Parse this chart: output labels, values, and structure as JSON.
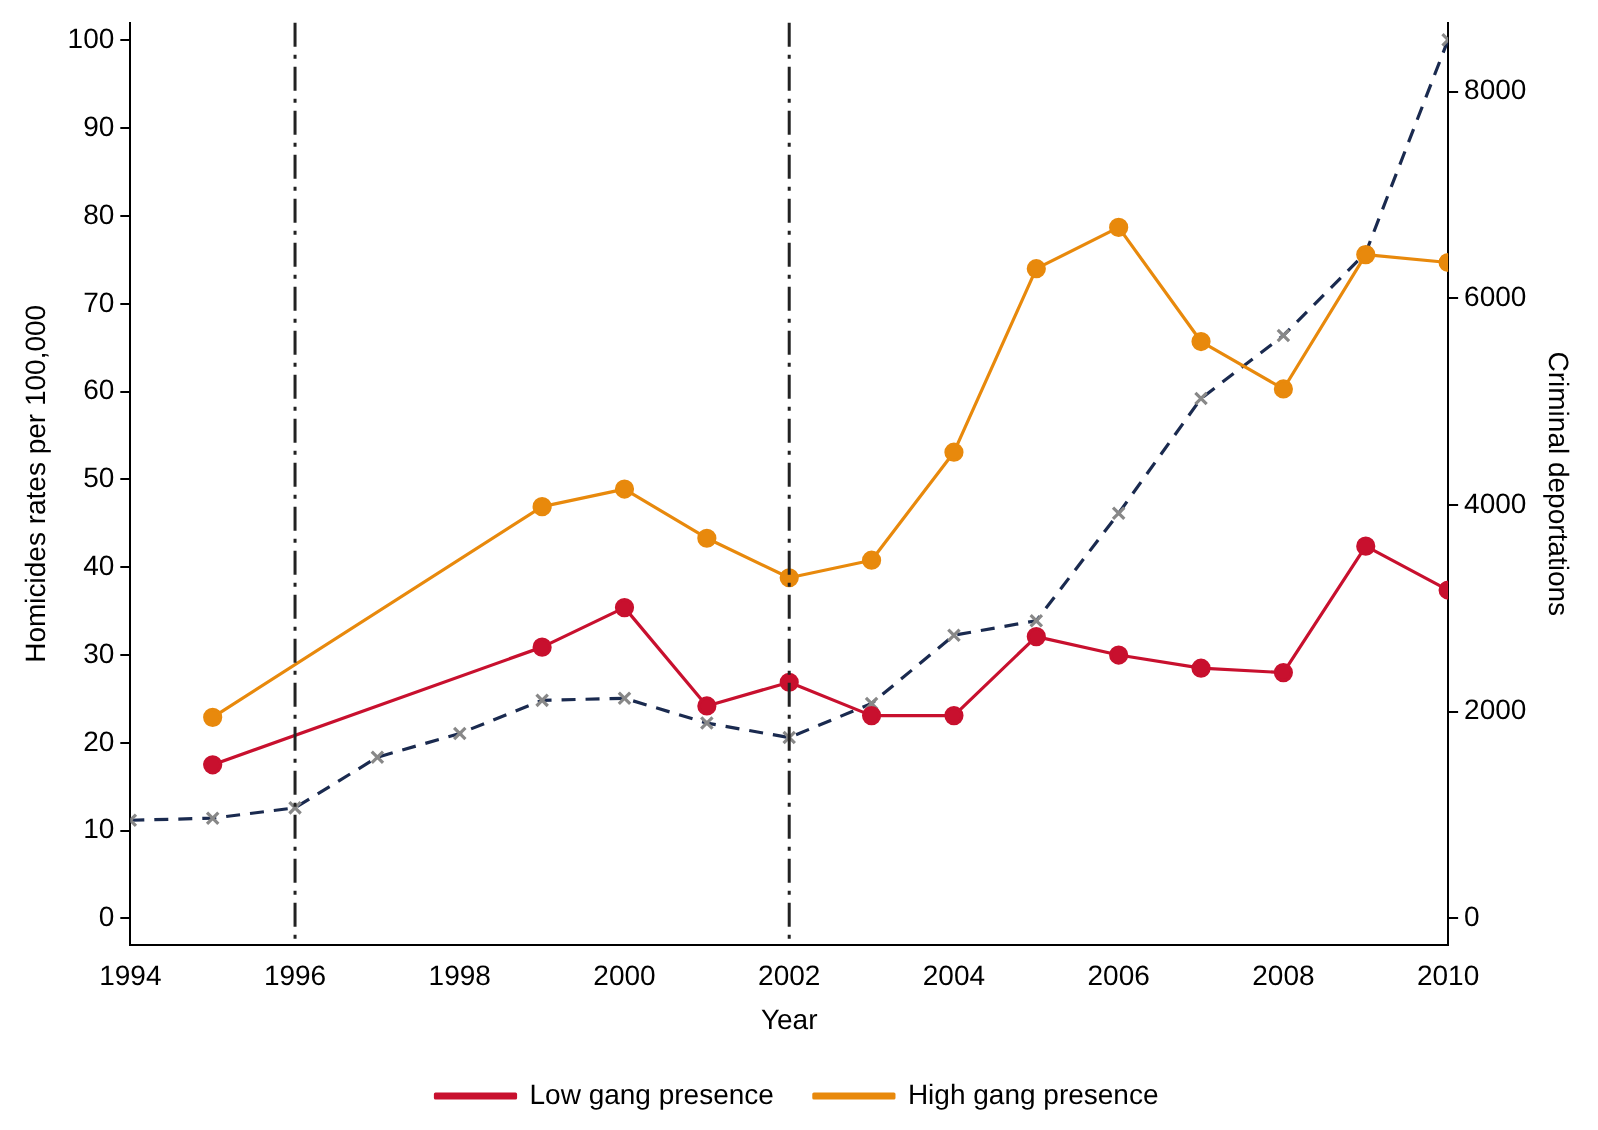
{
  "chart_data": {
    "type": "line",
    "xlabel": "Year",
    "ylabel": "Homicides rates per 100,000",
    "y2label": "Criminal deportations",
    "xlim": [
      1994,
      2010
    ],
    "xticks": [
      1994,
      1996,
      1998,
      2000,
      2002,
      2004,
      2006,
      2008,
      2010
    ],
    "ylim": [
      -3,
      102
    ],
    "yticks": [
      0,
      10,
      20,
      30,
      40,
      50,
      60,
      70,
      80,
      90,
      100
    ],
    "y2lim": [
      -255,
      8665
    ],
    "y2ticks": [
      0,
      2000,
      4000,
      6000,
      8000
    ],
    "grid": false,
    "legend": "bottom",
    "ref_lines": [
      {
        "axis": "x",
        "value": 1996,
        "color": "#222222",
        "line_style": "dashdot"
      },
      {
        "axis": "x",
        "value": 2002,
        "color": "#222222",
        "line_style": "dashdot"
      }
    ],
    "series": [
      {
        "name": "Low gang presence",
        "color": "#c8102e",
        "marker": "circle",
        "line_style": "solid",
        "x": [
          1995,
          1999,
          2000,
          2001,
          2002,
          2003,
          2004,
          2005,
          2006,
          2007,
          2008,
          2009,
          2010
        ],
        "values": [
          17.5,
          30.9,
          35.4,
          24.2,
          26.9,
          23.1,
          23.1,
          32.1,
          30.0,
          28.5,
          28.0,
          42.4,
          37.4
        ]
      },
      {
        "name": "High gang presence",
        "color": "#e8890c",
        "marker": "circle",
        "line_style": "solid",
        "x": [
          1995,
          1999,
          2000,
          2001,
          2002,
          2003,
          2004,
          2005,
          2006,
          2007,
          2008,
          2009,
          2010
        ],
        "values": [
          22.9,
          46.9,
          48.9,
          43.3,
          38.8,
          40.8,
          53.1,
          74.0,
          78.7,
          65.7,
          60.3,
          75.6,
          74.7
        ]
      },
      {
        "color": "#1a2a4f",
        "marker": "cross",
        "line_style": "dashed",
        "axis": "y2",
        "x": [
          1994,
          1995,
          1996,
          1997,
          1998,
          1999,
          2000,
          2001,
          2002,
          2003,
          2004,
          2005,
          2006,
          2007,
          2008,
          2009,
          2010
        ],
        "values": [
          950,
          970,
          1070,
          1560,
          1790,
          2110,
          2130,
          1890,
          1750,
          2080,
          2740,
          2880,
          3920,
          5030,
          5640,
          6440,
          8500
        ]
      }
    ]
  }
}
